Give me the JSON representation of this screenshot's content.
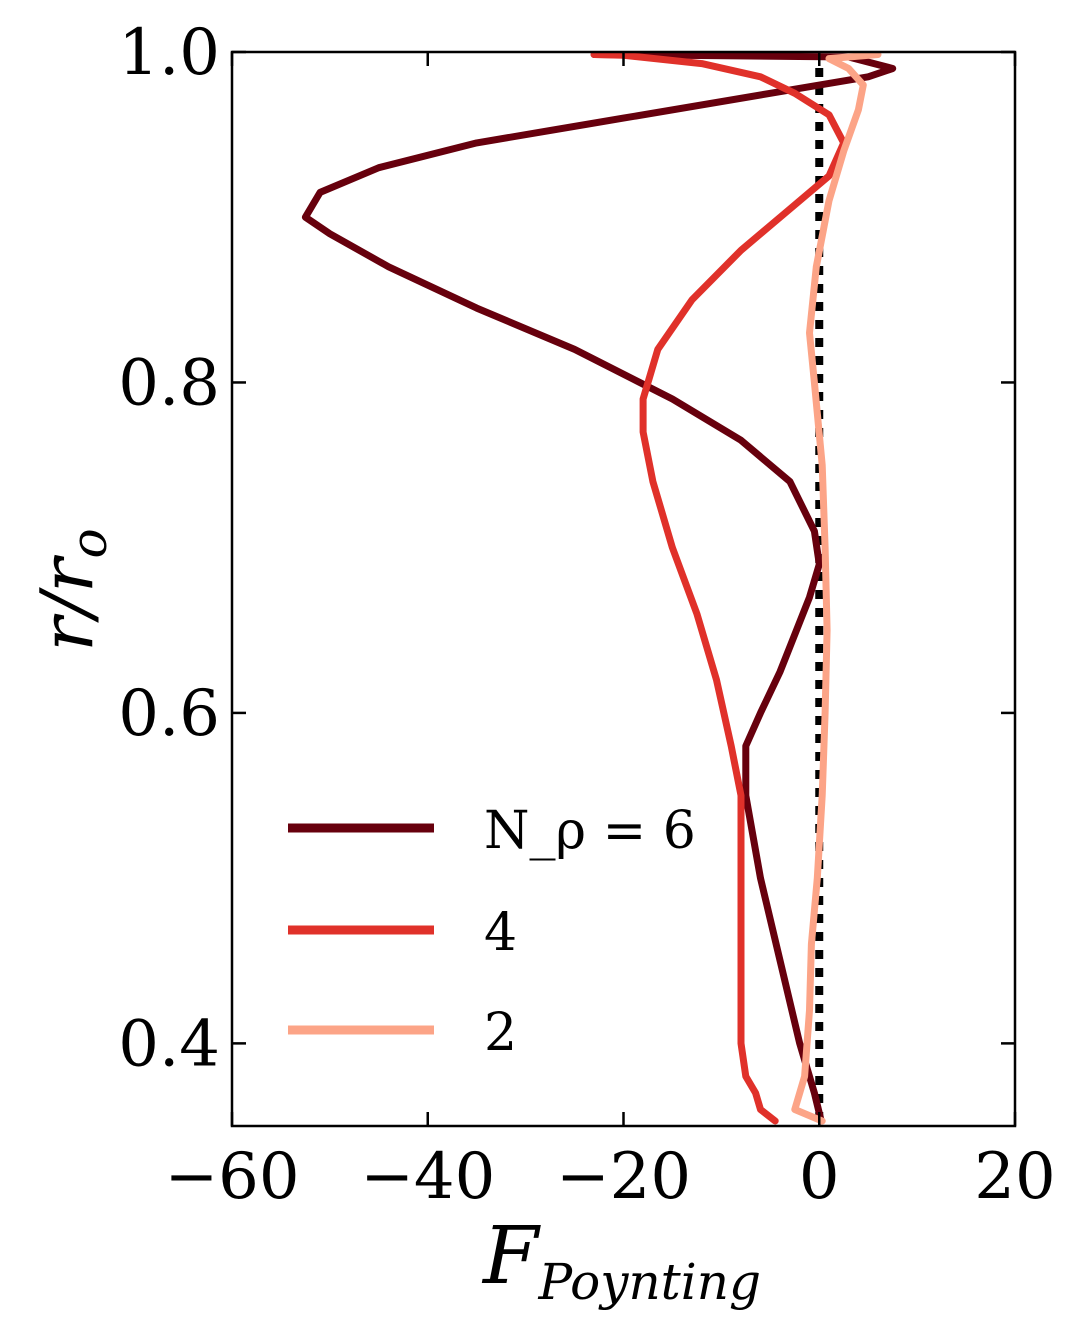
{
  "chart_data": {
    "type": "line",
    "xlabel": "F_Poynting",
    "ylabel": "r/r_o",
    "xlim": [
      -60,
      20
    ],
    "ylim": [
      0.35,
      1.0
    ],
    "xticks": [
      "−60",
      "−40",
      "−20",
      "0",
      "20"
    ],
    "xtick_values": [
      -60,
      -40,
      -20,
      0,
      20
    ],
    "yticks": [
      "0.4",
      "0.6",
      "0.8",
      "1.0"
    ],
    "ytick_values": [
      0.4,
      0.6,
      0.8,
      1.0
    ],
    "legend_position": "lower-left",
    "series": [
      {
        "name": "N_ρ = 6",
        "color": "#67000d",
        "points": [
          [
            0.2,
            0.353
          ],
          [
            -0.5,
            0.37
          ],
          [
            -2.0,
            0.4
          ],
          [
            -4.0,
            0.45
          ],
          [
            -6.0,
            0.5
          ],
          [
            -7.5,
            0.55
          ],
          [
            -7.5,
            0.58
          ],
          [
            -6.0,
            0.6
          ],
          [
            -4.0,
            0.625
          ],
          [
            -1.0,
            0.67
          ],
          [
            0.0,
            0.69
          ],
          [
            -0.5,
            0.71
          ],
          [
            -3.0,
            0.74
          ],
          [
            -8.0,
            0.765
          ],
          [
            -15.0,
            0.79
          ],
          [
            -25.0,
            0.82
          ],
          [
            -35.0,
            0.845
          ],
          [
            -44.0,
            0.87
          ],
          [
            -50.0,
            0.89
          ],
          [
            -52.5,
            0.9
          ],
          [
            -51.0,
            0.915
          ],
          [
            -45.0,
            0.93
          ],
          [
            -35.0,
            0.945
          ],
          [
            -20.0,
            0.96
          ],
          [
            -5.0,
            0.975
          ],
          [
            5.0,
            0.985
          ],
          [
            7.5,
            0.99
          ],
          [
            3.0,
            0.997
          ],
          [
            -23.0,
            0.9985
          ]
        ]
      },
      {
        "name": "4",
        "color": "#e0312a",
        "points": [
          [
            -4.5,
            0.353
          ],
          [
            -6.0,
            0.36
          ],
          [
            -6.5,
            0.37
          ],
          [
            -7.5,
            0.38
          ],
          [
            -8.0,
            0.4
          ],
          [
            -8.0,
            0.44
          ],
          [
            -8.0,
            0.48
          ],
          [
            -8.0,
            0.52
          ],
          [
            -8.0,
            0.55
          ],
          [
            -9.0,
            0.58
          ],
          [
            -10.5,
            0.62
          ],
          [
            -12.5,
            0.66
          ],
          [
            -15.0,
            0.7
          ],
          [
            -17.0,
            0.74
          ],
          [
            -18.0,
            0.77
          ],
          [
            -18.0,
            0.79
          ],
          [
            -16.5,
            0.82
          ],
          [
            -13.0,
            0.85
          ],
          [
            -8.0,
            0.88
          ],
          [
            -3.0,
            0.905
          ],
          [
            1.0,
            0.925
          ],
          [
            2.5,
            0.945
          ],
          [
            1.0,
            0.962
          ],
          [
            -2.5,
            0.975
          ],
          [
            -6.0,
            0.985
          ],
          [
            -12.0,
            0.993
          ],
          [
            -20.0,
            0.998
          ],
          [
            -23.0,
            0.9985
          ]
        ]
      },
      {
        "name": "2",
        "color": "#fca487",
        "points": [
          [
            0.3,
            0.353
          ],
          [
            -2.5,
            0.36
          ],
          [
            -1.5,
            0.38
          ],
          [
            -1.0,
            0.42
          ],
          [
            -0.8,
            0.46
          ],
          [
            -0.2,
            0.5
          ],
          [
            0.3,
            0.55
          ],
          [
            0.6,
            0.6
          ],
          [
            0.8,
            0.65
          ],
          [
            0.6,
            0.7
          ],
          [
            0.3,
            0.75
          ],
          [
            -0.5,
            0.8
          ],
          [
            -1.0,
            0.83
          ],
          [
            -0.3,
            0.87
          ],
          [
            1.0,
            0.91
          ],
          [
            2.5,
            0.94
          ],
          [
            4.0,
            0.965
          ],
          [
            4.5,
            0.98
          ],
          [
            3.0,
            0.99
          ],
          [
            1.0,
            0.996
          ],
          [
            6.0,
            0.9985
          ]
        ]
      }
    ],
    "zero_line": {
      "x": 0,
      "style": "dotted",
      "color": "#000000"
    }
  }
}
